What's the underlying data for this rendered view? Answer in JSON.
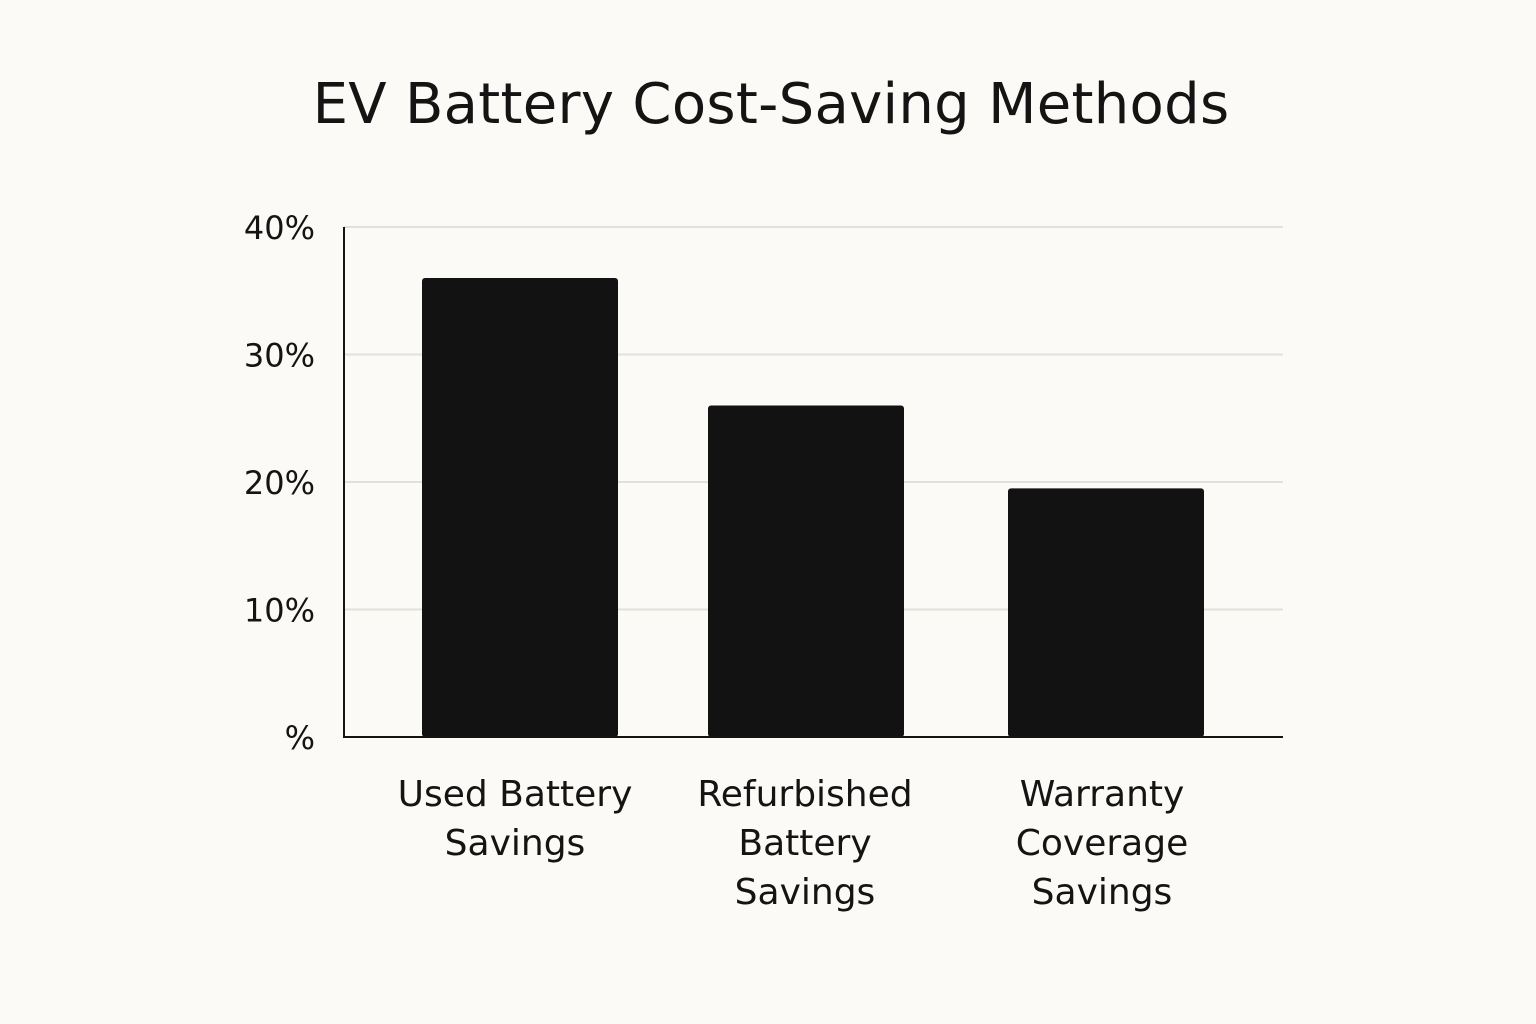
{
  "chart_data": {
    "type": "bar",
    "title": "EV Battery Cost-Saving Methods",
    "xlabel": "",
    "ylabel": "",
    "categories": [
      [
        "Used Battery",
        "Savings"
      ],
      [
        "Refurbished",
        "Battery",
        "Savings"
      ],
      [
        "Warranty",
        "Coverage",
        "Savings"
      ]
    ],
    "values": [
      36,
      26,
      19.5
    ],
    "ylim": [
      0,
      40
    ],
    "yticks": [
      0,
      10,
      20,
      30,
      40
    ],
    "ytick_labels": [
      "%",
      "10%",
      "20%",
      "30%",
      "40%"
    ],
    "grid": true,
    "legend": "none",
    "colors": {
      "bar": "#121212",
      "grid": "#e2e0da",
      "axis": "#141414",
      "background": "#fbfaf6"
    }
  }
}
